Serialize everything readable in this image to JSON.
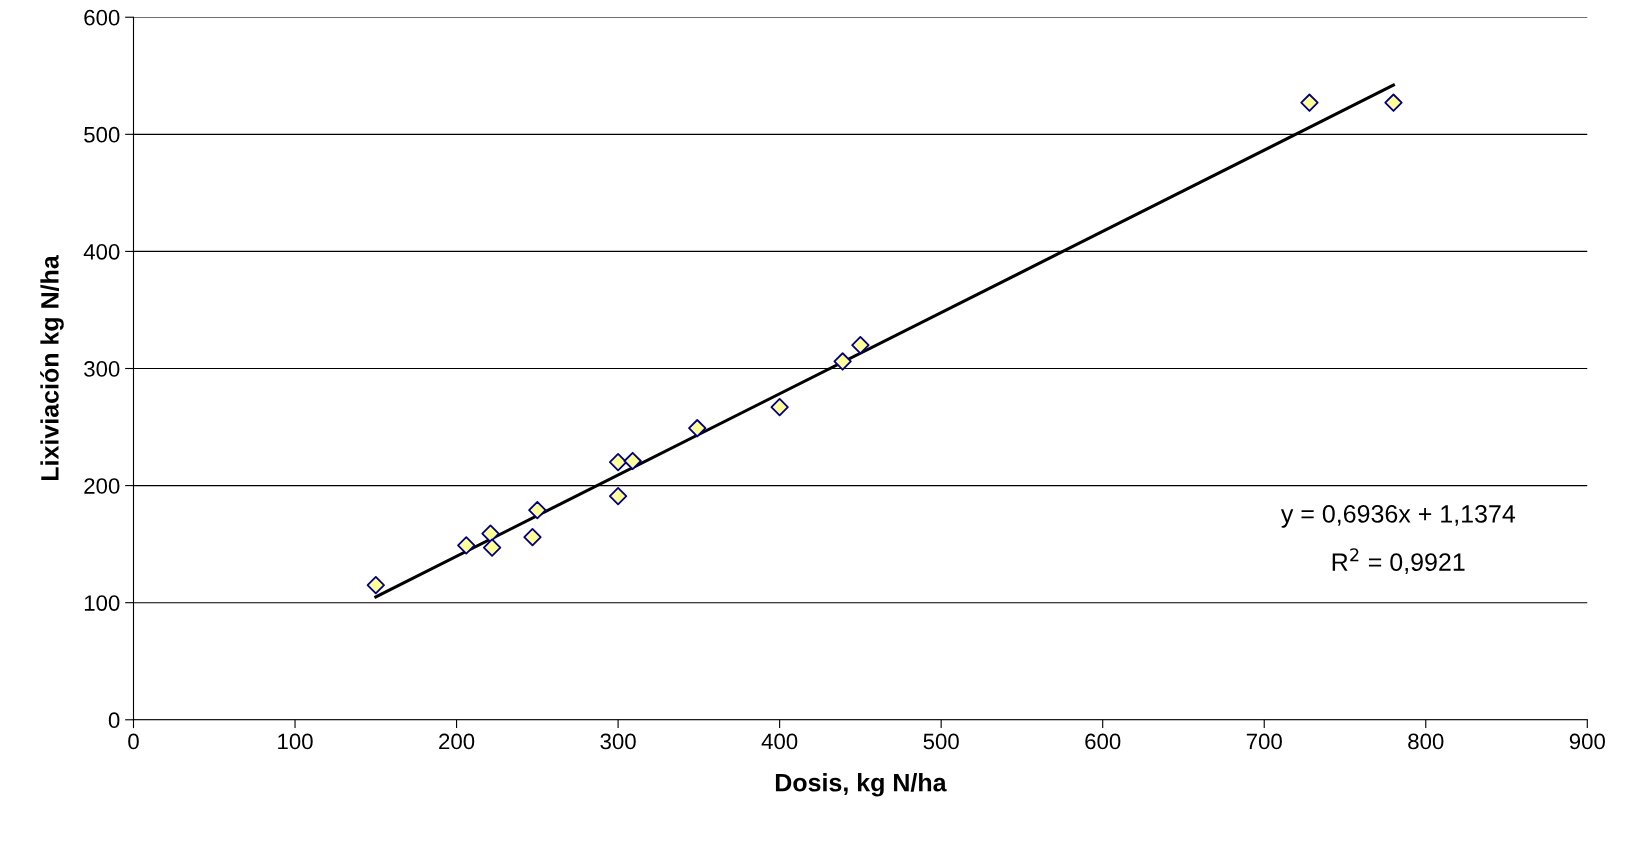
{
  "chart_data": {
    "type": "scatter",
    "xlabel": "Dosis, kg N/ha",
    "ylabel": "Lixiviación kg N/ha",
    "xlim": [
      0,
      900
    ],
    "xticks": [
      0,
      100,
      200,
      300,
      400,
      500,
      600,
      700,
      800,
      900
    ],
    "ylim": [
      0,
      600
    ],
    "yticks": [
      0,
      100,
      200,
      300,
      400,
      500,
      600
    ],
    "grid": "y",
    "marker": "diamond",
    "series": [
      {
        "color": "#ffff99",
        "x": [
          150,
          206,
          221,
          222,
          247,
          250,
          300,
          300,
          309,
          349,
          400,
          439,
          450,
          728,
          780
        ],
        "values": [
          115,
          149,
          159,
          147,
          156,
          179,
          220,
          191,
          221,
          249,
          267,
          306,
          320,
          527,
          527
        ]
      },
      {
        "type": "line",
        "color": "#000000",
        "line_style": "solid",
        "marker": "none",
        "x": [
          150,
          780
        ],
        "values": [
          105,
          542
        ]
      }
    ],
    "annotations": [
      "y = 0,6936x + 1,1374",
      "R$^{2}$ = 0,9921"
    ]
  }
}
